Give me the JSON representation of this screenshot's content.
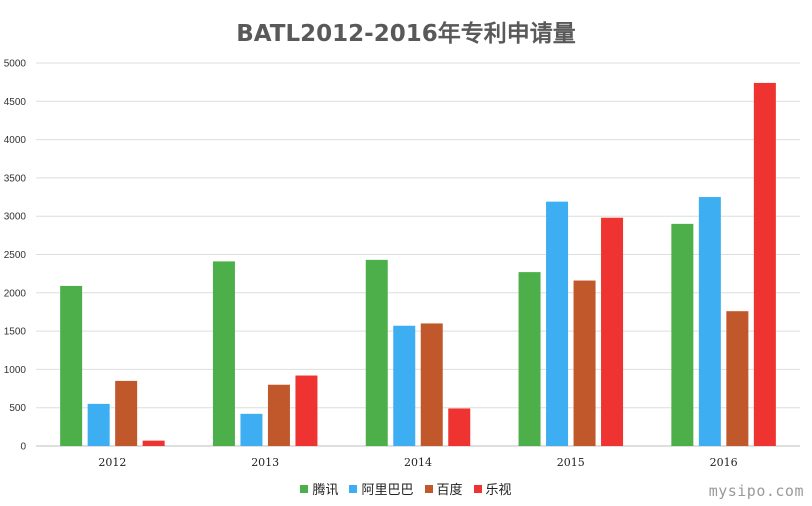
{
  "chart_data": {
    "type": "bar",
    "title": "BATL2012-2016年专利申请量",
    "categories": [
      "2012",
      "2013",
      "2014",
      "2015",
      "2016"
    ],
    "series": [
      {
        "name": "腾讯",
        "color": "#4daf4a",
        "values": [
          2090,
          2410,
          2430,
          2270,
          2900
        ]
      },
      {
        "name": "阿里巴巴",
        "color": "#3daef2",
        "values": [
          550,
          420,
          1570,
          3190,
          3250
        ]
      },
      {
        "name": "百度",
        "color": "#c0582b",
        "values": [
          850,
          800,
          1600,
          2160,
          1760
        ]
      },
      {
        "name": "乐视",
        "color": "#ee3330",
        "values": [
          70,
          920,
          490,
          2980,
          4740
        ]
      }
    ],
    "ylim": [
      0,
      5000
    ],
    "yticks": [
      0,
      500,
      1000,
      1500,
      2000,
      2500,
      3000,
      3500,
      4000,
      4500,
      5000
    ],
    "grid": true,
    "legend_position": "bottom"
  },
  "watermark": "mysipo.com"
}
